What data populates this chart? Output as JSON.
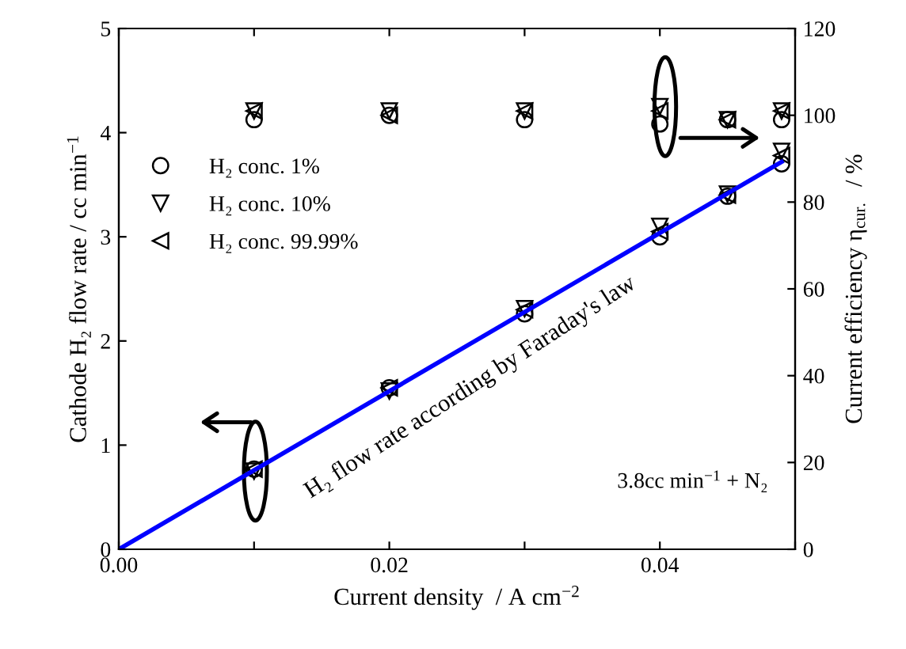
{
  "chart_data": {
    "type": "scatter",
    "xlabel": "Current density  / A cm$^{−2}$",
    "ylabel": "Cathode H₂ flow rate / cc min$^{−1}$",
    "y2label": "Current efficiency η$_{cur.}$  / %",
    "xlim": [
      0,
      0.05
    ],
    "ylim": [
      0,
      5
    ],
    "y2lim": [
      0,
      120
    ],
    "xticks": [
      {
        "value": 0,
        "label": "0.00"
      },
      {
        "value": 0.01,
        "label": null
      },
      {
        "value": 0.02,
        "label": "0.02"
      },
      {
        "value": 0.03,
        "label": null
      },
      {
        "value": 0.04,
        "label": "0.04"
      },
      {
        "value": 0.05,
        "label": null
      }
    ],
    "yticks": [
      0,
      1,
      2,
      3,
      4,
      5
    ],
    "y2ticks": [
      0,
      20,
      40,
      60,
      80,
      100,
      120
    ],
    "legend": "left",
    "grid": false,
    "series": [
      {
        "name": "H₂ conc. 1%",
        "marker": "circle",
        "color": "#000000",
        "x": [
          0.01,
          0.02,
          0.03,
          0.04,
          0.045,
          0.049
        ],
        "values": [
          0.77,
          1.55,
          2.26,
          3.0,
          3.39,
          3.7
        ]
      },
      {
        "name": "H₂ conc. 10%",
        "marker": "triangle-down",
        "color": "#000000",
        "x": [
          0.01,
          0.02,
          0.03,
          0.04,
          0.045,
          0.049
        ],
        "values": [
          0.75,
          1.52,
          2.31,
          3.1,
          3.41,
          3.82
        ]
      },
      {
        "name": "H₂ conc. 99.99%",
        "marker": "triangle-left",
        "color": "#000000",
        "x": [
          0.01,
          0.02,
          0.03,
          0.04,
          0.045,
          0.049
        ],
        "values": [
          0.77,
          1.55,
          2.3,
          3.05,
          3.4,
          3.78
        ]
      },
      {
        "marker": "circle",
        "color": "#000000",
        "axis": "y2",
        "x": [
          0.01,
          0.02,
          0.03,
          0.04,
          0.045,
          0.049
        ],
        "values": [
          99,
          100,
          99,
          98,
          99,
          99
        ]
      },
      {
        "marker": "triangle-down",
        "color": "#000000",
        "axis": "y2",
        "x": [
          0.01,
          0.02,
          0.03,
          0.04,
          0.045,
          0.049
        ],
        "values": [
          101,
          101,
          101,
          102,
          99,
          101
        ]
      },
      {
        "marker": "triangle-left",
        "color": "#000000",
        "axis": "y2",
        "x": [
          0.01,
          0.02,
          0.03,
          0.04,
          0.045,
          0.049
        ],
        "values": [
          101,
          100,
          101,
          101,
          99,
          101
        ]
      },
      {
        "type": "line",
        "marker": "none",
        "color": "#0000ff",
        "x": [
          0,
          0.049
        ],
        "values": [
          0,
          3.72
        ]
      }
    ],
    "annotations": [
      "H₂ flow rate according by Faraday's law",
      "3.8cc min$^{−1}$ + N₂"
    ]
  }
}
